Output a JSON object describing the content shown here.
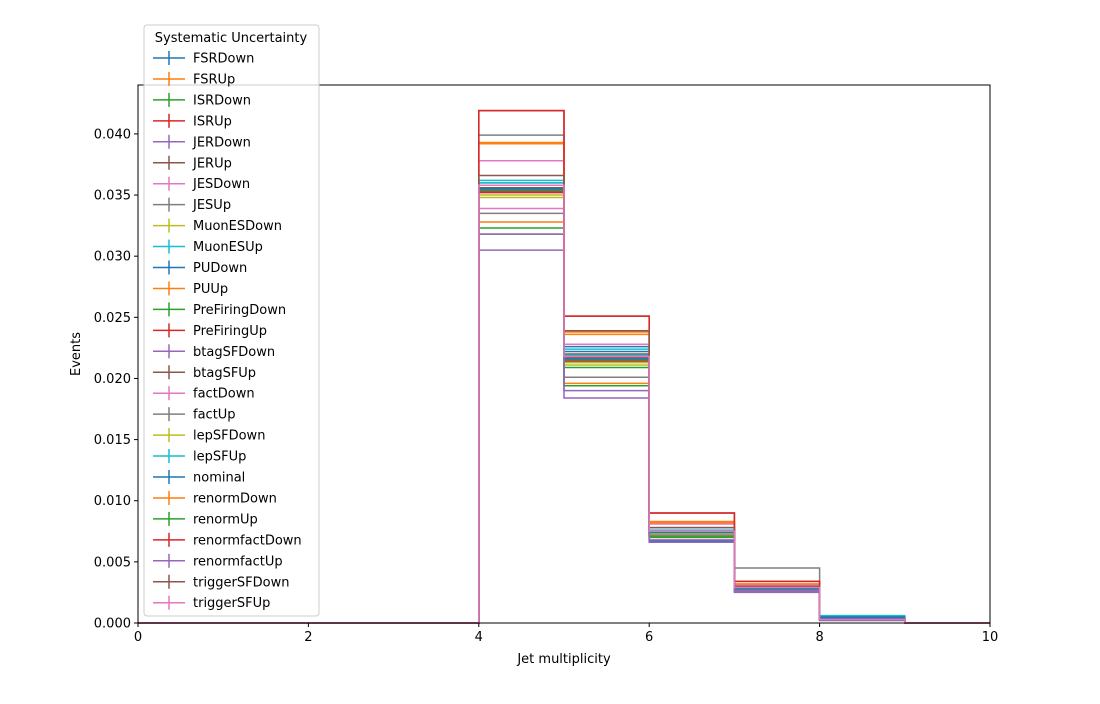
{
  "chart_data": {
    "type": "histogram-step",
    "xlabel": "Jet multiplicity",
    "ylabel": "Events",
    "xlim": [
      0,
      10
    ],
    "ylim": [
      0,
      0.044
    ],
    "xticks": [
      "0",
      "2",
      "4",
      "6",
      "8",
      "10"
    ],
    "yticks": [
      "0.000",
      "0.005",
      "0.010",
      "0.015",
      "0.020",
      "0.025",
      "0.030",
      "0.035",
      "0.040"
    ],
    "bin_edges": [
      0,
      4,
      5,
      6,
      7,
      8,
      9,
      10
    ],
    "legend": {
      "title": "Systematic Uncertainty",
      "placement": "upper-left"
    },
    "grid": false,
    "series": [
      {
        "name": "FSRDown",
        "color": "#1f77b4",
        "values": [
          0,
          0.0358,
          0.0222,
          0.0067,
          0.0026,
          0.0004,
          0
        ]
      },
      {
        "name": "FSRUp",
        "color": "#ff7f0e",
        "values": [
          0,
          0.0392,
          0.0236,
          0.0082,
          0.003,
          0.0003,
          0
        ]
      },
      {
        "name": "ISRDown",
        "color": "#2ca02c",
        "values": [
          0,
          0.0323,
          0.0209,
          0.0071,
          0.0028,
          0.0003,
          0
        ]
      },
      {
        "name": "ISRUp",
        "color": "#d62728",
        "values": [
          0,
          0.0419,
          0.0251,
          0.009,
          0.0034,
          0.0003,
          0
        ]
      },
      {
        "name": "JERDown",
        "color": "#9467bd",
        "values": [
          0,
          0.0355,
          0.0216,
          0.0074,
          0.0029,
          0.0003,
          0
        ]
      },
      {
        "name": "JERUp",
        "color": "#8c564b",
        "values": [
          0,
          0.0356,
          0.0217,
          0.0074,
          0.0029,
          0.0003,
          0
        ]
      },
      {
        "name": "JESDown",
        "color": "#e377c2",
        "values": [
          0,
          0.0339,
          0.0213,
          0.0072,
          0.0028,
          0.0003,
          0
        ]
      },
      {
        "name": "JESUp",
        "color": "#7f7f7f",
        "values": [
          0,
          0.0399,
          0.0239,
          0.0078,
          0.0045,
          0.0003,
          0
        ]
      },
      {
        "name": "MuonESDown",
        "color": "#bcbd22",
        "values": [
          0,
          0.0348,
          0.0211,
          0.0073,
          0.0028,
          0.0003,
          0
        ]
      },
      {
        "name": "MuonESUp",
        "color": "#17becf",
        "values": [
          0,
          0.0362,
          0.0224,
          0.0076,
          0.0029,
          0.0006,
          0
        ]
      },
      {
        "name": "PUDown",
        "color": "#1f77b4",
        "values": [
          0,
          0.036,
          0.0226,
          0.0075,
          0.0029,
          0.0005,
          0
        ]
      },
      {
        "name": "PUUp",
        "color": "#ff7f0e",
        "values": [
          0,
          0.0328,
          0.0196,
          0.007,
          0.0027,
          0.0003,
          0
        ]
      },
      {
        "name": "PreFiringDown",
        "color": "#2ca02c",
        "values": [
          0,
          0.0354,
          0.0215,
          0.0073,
          0.0028,
          0.0003,
          0
        ]
      },
      {
        "name": "PreFiringUp",
        "color": "#d62728",
        "values": [
          0,
          0.0352,
          0.0214,
          0.0073,
          0.0028,
          0.0003,
          0
        ]
      },
      {
        "name": "btagSFDown",
        "color": "#9467bd",
        "values": [
          0,
          0.0305,
          0.0184,
          0.0066,
          0.0025,
          0.0002,
          0
        ]
      },
      {
        "name": "btagSFUp",
        "color": "#8c564b",
        "values": [
          0,
          0.0353,
          0.022,
          0.0075,
          0.0028,
          0.0003,
          0
        ]
      },
      {
        "name": "factDown",
        "color": "#e377c2",
        "values": [
          0,
          0.0378,
          0.0228,
          0.0081,
          0.0031,
          0.0003,
          0
        ]
      },
      {
        "name": "factUp",
        "color": "#7f7f7f",
        "values": [
          0,
          0.0335,
          0.0201,
          0.0072,
          0.0027,
          0.0003,
          0
        ]
      },
      {
        "name": "lepSFDown",
        "color": "#bcbd22",
        "values": [
          0,
          0.035,
          0.0213,
          0.0073,
          0.0028,
          0.0003,
          0
        ]
      },
      {
        "name": "lepSFUp",
        "color": "#17becf",
        "values": [
          0,
          0.036,
          0.0219,
          0.0075,
          0.0029,
          0.0003,
          0
        ]
      },
      {
        "name": "nominal",
        "color": "#1f77b4",
        "values": [
          0,
          0.0355,
          0.0216,
          0.0074,
          0.0028,
          0.0003,
          0
        ]
      },
      {
        "name": "renormDown",
        "color": "#ff7f0e",
        "values": [
          0,
          0.0393,
          0.0238,
          0.0083,
          0.0032,
          0.0003,
          0
        ]
      },
      {
        "name": "renormUp",
        "color": "#2ca02c",
        "values": [
          0,
          0.0318,
          0.0194,
          0.007,
          0.0026,
          0.0003,
          0
        ]
      },
      {
        "name": "renormfactDown",
        "color": "#d62728",
        "values": [
          0,
          0.0419,
          0.0251,
          0.009,
          0.0034,
          0.0003,
          0
        ]
      },
      {
        "name": "renormfactUp",
        "color": "#9467bd",
        "values": [
          0,
          0.0318,
          0.019,
          0.0068,
          0.0026,
          0.0003,
          0
        ]
      },
      {
        "name": "triggerSFDown",
        "color": "#8c564b",
        "values": [
          0,
          0.0366,
          0.0239,
          0.0078,
          0.003,
          0.0003,
          0
        ]
      },
      {
        "name": "triggerSFUp",
        "color": "#e377c2",
        "values": [
          0,
          0.0358,
          0.0218,
          0.0075,
          0.0029,
          0.0003,
          0
        ]
      }
    ]
  }
}
